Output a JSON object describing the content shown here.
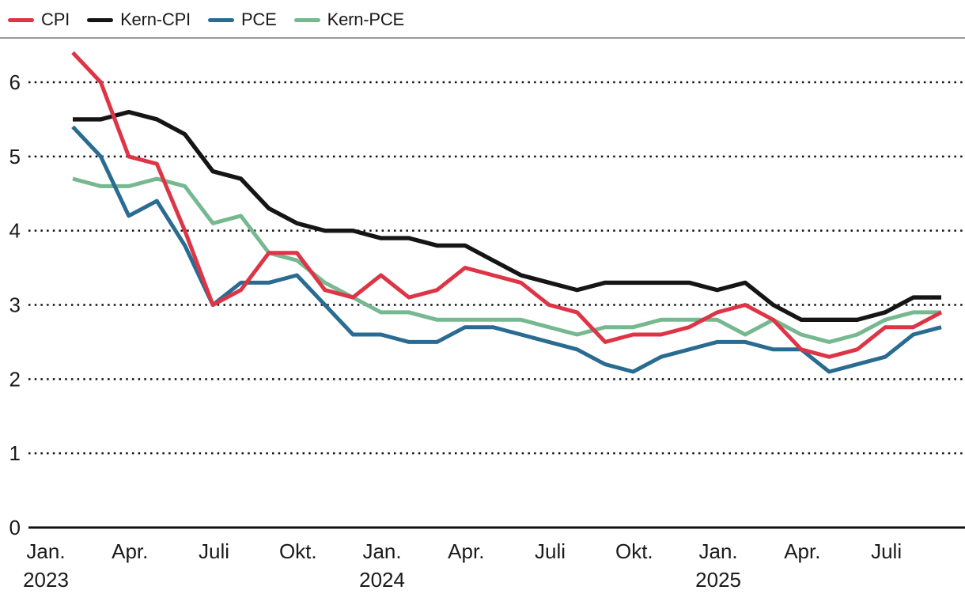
{
  "legend": {
    "items": [
      {
        "label": "CPI",
        "color": "#dd3545"
      },
      {
        "label": "Kern-CPI",
        "color": "#151515"
      },
      {
        "label": "PCE",
        "color": "#2a6b92"
      },
      {
        "label": "Kern-PCE",
        "color": "#76b890"
      }
    ]
  },
  "separator_color": "#999999",
  "grid_color": "#111111",
  "text_color": "#1a1a1a",
  "chart_data": {
    "type": "line",
    "title": "",
    "x_unit": "month",
    "x_start": "Jan. 2023",
    "x_end": "Aug. 2025",
    "ylim": [
      0,
      6.5
    ],
    "y_ticks": [
      0,
      1,
      2,
      3,
      4,
      5,
      6
    ],
    "grid": "dotted horizontal, solid zero axis",
    "legend_position": "top-left",
    "x_tick_labels": [
      {
        "month_index": 0,
        "line1": "Jan.",
        "line2": "2023"
      },
      {
        "month_index": 3,
        "line1": "Apr.",
        "line2": ""
      },
      {
        "month_index": 6,
        "line1": "Juli",
        "line2": ""
      },
      {
        "month_index": 9,
        "line1": "Okt.",
        "line2": ""
      },
      {
        "month_index": 12,
        "line1": "Jan.",
        "line2": "2024"
      },
      {
        "month_index": 15,
        "line1": "Apr.",
        "line2": ""
      },
      {
        "month_index": 18,
        "line1": "Juli",
        "line2": ""
      },
      {
        "month_index": 21,
        "line1": "Okt.",
        "line2": ""
      },
      {
        "month_index": 24,
        "line1": "Jan.",
        "line2": "2025"
      },
      {
        "month_index": 27,
        "line1": "Apr.",
        "line2": ""
      },
      {
        "month_index": 30,
        "line1": "Juli",
        "line2": ""
      }
    ],
    "series": [
      {
        "name": "CPI",
        "color": "#dd3545",
        "width": 5,
        "values": [
          6.4,
          6.0,
          5.0,
          4.9,
          4.0,
          3.0,
          3.2,
          3.7,
          3.7,
          3.2,
          3.1,
          3.4,
          3.1,
          3.2,
          3.5,
          3.4,
          3.3,
          3.0,
          2.9,
          2.5,
          2.6,
          2.6,
          2.7,
          2.9,
          3.0,
          2.8,
          2.4,
          2.3,
          2.4,
          2.7,
          2.7,
          2.9
        ]
      },
      {
        "name": "Kern-CPI",
        "color": "#151515",
        "width": 5.4,
        "values": [
          5.5,
          5.5,
          5.6,
          5.5,
          5.3,
          4.8,
          4.7,
          4.3,
          4.1,
          4.0,
          4.0,
          3.9,
          3.9,
          3.8,
          3.8,
          3.6,
          3.4,
          3.3,
          3.2,
          3.3,
          3.3,
          3.3,
          3.3,
          3.2,
          3.3,
          3.0,
          2.8,
          2.8,
          2.8,
          2.9,
          3.1,
          3.1
        ]
      },
      {
        "name": "PCE",
        "color": "#2a6b92",
        "width": 5,
        "values": [
          5.4,
          5.0,
          4.2,
          4.4,
          3.8,
          3.0,
          3.3,
          3.3,
          3.4,
          3.0,
          2.6,
          2.6,
          2.5,
          2.5,
          2.7,
          2.7,
          2.6,
          2.5,
          2.4,
          2.2,
          2.1,
          2.3,
          2.4,
          2.5,
          2.5,
          2.4,
          2.4,
          2.1,
          2.2,
          2.3,
          2.6,
          2.7
        ]
      },
      {
        "name": "Kern-PCE",
        "color": "#76b890",
        "width": 5,
        "values": [
          4.7,
          4.6,
          4.6,
          4.7,
          4.6,
          4.1,
          4.2,
          3.7,
          3.6,
          3.3,
          3.1,
          2.9,
          2.9,
          2.8,
          2.8,
          2.8,
          2.8,
          2.7,
          2.6,
          2.7,
          2.7,
          2.8,
          2.8,
          2.8,
          2.6,
          2.8,
          2.6,
          2.5,
          2.6,
          2.8,
          2.9,
          2.9
        ]
      }
    ]
  }
}
